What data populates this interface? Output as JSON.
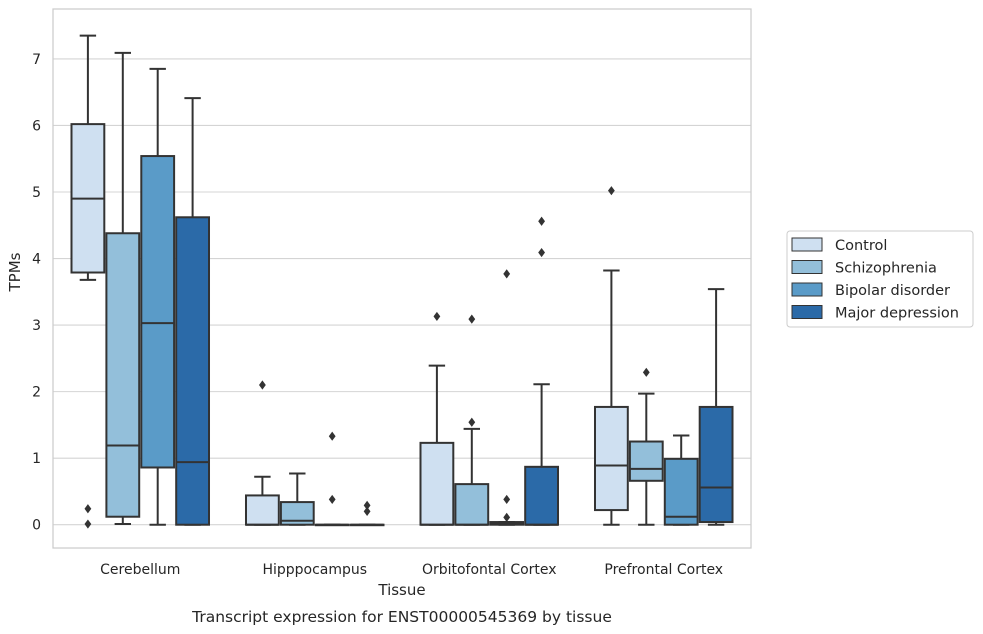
{
  "chart_data": {
    "type": "boxplot",
    "title": "",
    "caption": "Transcript expression for ENST00000545369 by tissue",
    "xlabel": "Tissue",
    "ylabel": "TPMs",
    "ylim": [
      -0.35,
      7.75
    ],
    "yticks": [
      0,
      1,
      2,
      3,
      4,
      5,
      6,
      7
    ],
    "grid": "horizontal",
    "legend_position": "right",
    "categories": [
      "Cerebellum",
      "Hipppocampus",
      "Orbitofontal Cortex",
      "Prefrontal Cortex"
    ],
    "series": [
      {
        "name": "Control",
        "color": "#cfe0f1",
        "boxes": [
          {
            "whislo": 3.68,
            "q1": 3.79,
            "med": 4.9,
            "q3": 6.02,
            "whishi": 7.35,
            "fliers": [
              0.24,
              0.01
            ]
          },
          {
            "whislo": 0.0,
            "q1": 0.0,
            "med": 0.0,
            "q3": 0.44,
            "whishi": 0.72,
            "fliers": [
              2.1
            ]
          },
          {
            "whislo": 0.0,
            "q1": 0.0,
            "med": 0.0,
            "q3": 1.23,
            "whishi": 2.39,
            "fliers": [
              3.13
            ]
          },
          {
            "whislo": 0.0,
            "q1": 0.22,
            "med": 0.89,
            "q3": 1.77,
            "whishi": 3.82,
            "fliers": [
              5.02
            ]
          }
        ]
      },
      {
        "name": "Schizophrenia",
        "color": "#93bfda",
        "boxes": [
          {
            "whislo": 0.01,
            "q1": 0.12,
            "med": 1.19,
            "q3": 4.38,
            "whishi": 7.09,
            "fliers": []
          },
          {
            "whislo": 0.0,
            "q1": 0.0,
            "med": 0.06,
            "q3": 0.34,
            "whishi": 0.77,
            "fliers": []
          },
          {
            "whislo": 0.0,
            "q1": 0.0,
            "med": 0.0,
            "q3": 0.61,
            "whishi": 1.44,
            "fliers": [
              1.54,
              3.09
            ]
          },
          {
            "whislo": 0.0,
            "q1": 0.66,
            "med": 0.84,
            "q3": 1.25,
            "whishi": 1.97,
            "fliers": [
              2.29
            ]
          }
        ]
      },
      {
        "name": "Bipolar disorder",
        "color": "#5a9bc8",
        "boxes": [
          {
            "whislo": 0.0,
            "q1": 0.86,
            "med": 3.03,
            "q3": 5.54,
            "whishi": 6.85,
            "fliers": []
          },
          {
            "whislo": 0.0,
            "q1": 0.0,
            "med": 0.0,
            "q3": 0.0,
            "whishi": 0.0,
            "fliers": [
              1.33,
              0.38
            ]
          },
          {
            "whislo": 0.0,
            "q1": 0.0,
            "med": 0.01,
            "q3": 0.04,
            "whishi": 0.04,
            "fliers": [
              0.11,
              0.38,
              3.77
            ]
          },
          {
            "whislo": 0.0,
            "q1": 0.0,
            "med": 0.12,
            "q3": 0.99,
            "whishi": 1.34,
            "fliers": []
          }
        ]
      },
      {
        "name": "Major depression",
        "color": "#2b6aa8",
        "boxes": [
          {
            "whislo": 0.0,
            "q1": 0.0,
            "med": 0.94,
            "q3": 4.62,
            "whishi": 6.41,
            "fliers": []
          },
          {
            "whislo": 0.0,
            "q1": 0.0,
            "med": 0.0,
            "q3": 0.0,
            "whishi": 0.0,
            "fliers": [
              0.2,
              0.29
            ]
          },
          {
            "whislo": 0.0,
            "q1": 0.0,
            "med": 0.0,
            "q3": 0.87,
            "whishi": 2.11,
            "fliers": [
              4.09,
              4.56
            ]
          },
          {
            "whislo": 0.0,
            "q1": 0.04,
            "med": 0.56,
            "q3": 1.77,
            "whishi": 3.54,
            "fliers": []
          }
        ]
      }
    ]
  }
}
